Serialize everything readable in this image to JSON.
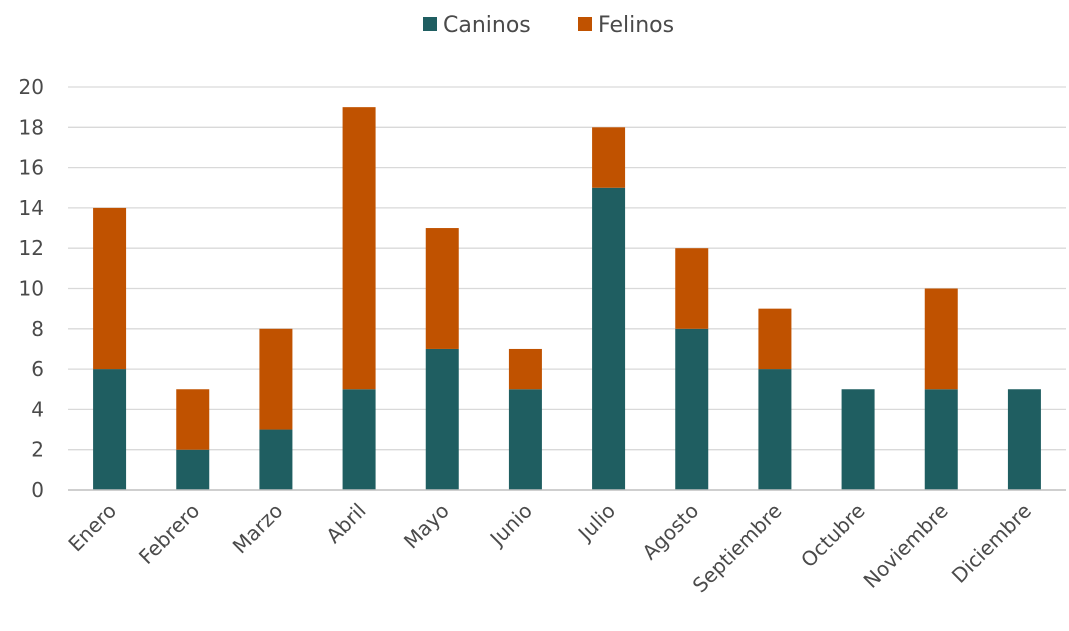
{
  "chart_data": {
    "type": "bar",
    "stacked": true,
    "title": "",
    "xlabel": "",
    "ylabel": "",
    "ylim": [
      0,
      20
    ],
    "ytick_step": 2,
    "grid": true,
    "legend_position": "top-center",
    "categories": [
      "Enero",
      "Febrero",
      "Marzo",
      "Abril",
      "Mayo",
      "Junio",
      "Julio",
      "Agosto",
      "Septiembre",
      "Octubre",
      "Noviembre",
      "Diciembre"
    ],
    "series": [
      {
        "name": "Caninos",
        "color": "#1f5e61",
        "values": [
          6,
          2,
          3,
          5,
          7,
          5,
          15,
          8,
          6,
          5,
          5,
          5
        ]
      },
      {
        "name": "Felinos",
        "color": "#c05200",
        "values": [
          8,
          3,
          5,
          14,
          6,
          2,
          3,
          4,
          3,
          0,
          5,
          0
        ]
      }
    ]
  }
}
